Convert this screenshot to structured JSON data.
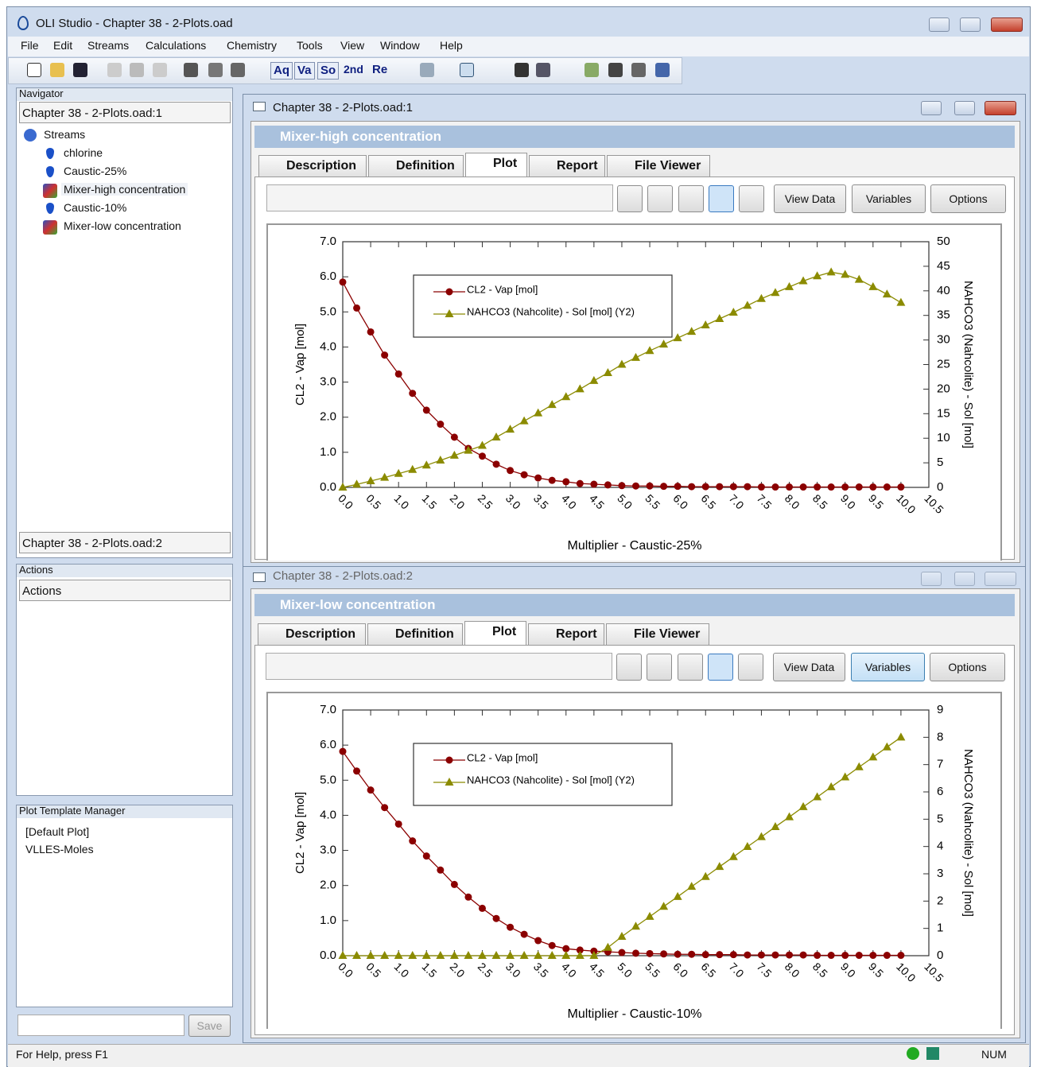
{
  "window": {
    "title": "OLI Studio - Chapter 38 - 2-Plots.oad",
    "menu": [
      "File",
      "Edit",
      "Streams",
      "Calculations",
      "Chemistry",
      "Tools",
      "View",
      "Window",
      "Help"
    ],
    "toolbar": [
      "Aq",
      "Va",
      "So",
      "2nd",
      "Re"
    ],
    "navigator": {
      "title": "Navigator",
      "file1": "Chapter 38 - 2-Plots.oad:1",
      "tree": [
        "Streams",
        "chlorine",
        "Caustic-25%",
        "Mixer-high concentration",
        "Caustic-10%",
        "Mixer-low concentration"
      ],
      "file2": "Chapter 38 - 2-Plots.oad:2"
    },
    "actions": {
      "title": "Actions",
      "header": "Actions"
    },
    "plot_templates": {
      "title": "Plot Template Manager",
      "items": [
        "[Default Plot]",
        "VLLES-Moles"
      ],
      "save": "Save"
    },
    "documents": [
      {
        "title": "Chapter 38 - 2-Plots.oad:1",
        "heading": "Mixer-high concentration"
      },
      {
        "title": "Chapter 38 - 2-Plots.oad:2",
        "heading": "Mixer-low concentration"
      }
    ],
    "tabs": [
      "Description",
      "Definition",
      "Plot",
      "Report",
      "File Viewer"
    ],
    "buttons": [
      "View Data",
      "Variables",
      "Options"
    ],
    "status": {
      "help": "For Help, press F1",
      "num": "NUM"
    }
  },
  "chart_data": [
    {
      "type": "line",
      "xlabel": "Multiplier - Caustic-25%",
      "ylabel": "CL2 - Vap [mol]",
      "y2label": "NAHCO3 (Nahcolite) - Sol [mol]",
      "x": [
        0,
        0.25,
        0.5,
        0.75,
        1,
        1.25,
        1.5,
        1.75,
        2,
        2.25,
        2.5,
        2.75,
        3,
        3.25,
        3.5,
        3.75,
        4,
        4.25,
        4.5,
        4.75,
        5,
        5.25,
        5.5,
        5.75,
        6,
        6.25,
        6.5,
        6.75,
        7,
        7.25,
        7.5,
        7.75,
        8,
        8.25,
        8.5,
        8.75,
        9,
        9.25,
        9.5,
        9.75,
        10
      ],
      "series": [
        {
          "name": "CL2 - Vap [mol]",
          "color": "#8b0000",
          "marker": "circle",
          "values": [
            5.85,
            5.11,
            4.43,
            3.77,
            3.23,
            2.68,
            2.2,
            1.8,
            1.43,
            1.11,
            0.89,
            0.66,
            0.48,
            0.36,
            0.27,
            0.2,
            0.16,
            0.11,
            0.09,
            0.07,
            0.05,
            0.04,
            0.04,
            0.03,
            0.03,
            0.02,
            0.02,
            0.02,
            0.02,
            0.02,
            0.01,
            0.01,
            0.01,
            0.01,
            0.01,
            0.01,
            0.01,
            0.01,
            0.01,
            0.01,
            0.01
          ]
        },
        {
          "name": "NAHCO3 (Nahcolite) - Sol [mol] (Y2)",
          "color": "#8b8b00",
          "marker": "triangle",
          "axis": "y2",
          "values": [
            0,
            0.6,
            1.3,
            2.0,
            2.8,
            3.6,
            4.5,
            5.5,
            6.5,
            7.5,
            8.5,
            10.2,
            11.8,
            13.5,
            15.1,
            16.8,
            18.4,
            20.0,
            21.7,
            23.3,
            25.0,
            26.4,
            27.8,
            29.1,
            30.4,
            31.7,
            33.0,
            34.3,
            35.6,
            37.0,
            38.4,
            39.6,
            40.8,
            42.0,
            43.0,
            43.8,
            43.3,
            42.3,
            40.8,
            39.3,
            37.6
          ]
        }
      ],
      "xlim": [
        0,
        10.5
      ],
      "ylim": [
        0,
        7
      ],
      "y2lim": [
        0,
        50
      ],
      "xticks": [
        {
          "value": 0,
          "label": "0.0"
        },
        {
          "value": 0.5,
          "label": "0.5"
        },
        {
          "value": 1,
          "label": "1.0"
        },
        {
          "value": 1.5,
          "label": "1.5"
        },
        {
          "value": 2,
          "label": "2.0"
        },
        {
          "value": 2.5,
          "label": "2.5"
        },
        {
          "value": 3,
          "label": "3.0"
        },
        {
          "value": 3.5,
          "label": "3.5"
        },
        {
          "value": 4,
          "label": "4.0"
        },
        {
          "value": 4.5,
          "label": "4.5"
        },
        {
          "value": 5,
          "label": "5.0"
        },
        {
          "value": 5.5,
          "label": "5.5"
        },
        {
          "value": 6,
          "label": "6.0"
        },
        {
          "value": 6.5,
          "label": "6.5"
        },
        {
          "value": 7,
          "label": "7.0"
        },
        {
          "value": 7.5,
          "label": "7.5"
        },
        {
          "value": 8,
          "label": "8.0"
        },
        {
          "value": 8.5,
          "label": "8.5"
        },
        {
          "value": 9,
          "label": "9.0"
        },
        {
          "value": 9.5,
          "label": "9.5"
        },
        {
          "value": 10,
          "label": "10.0"
        },
        {
          "value": 10.5,
          "label": "10.5"
        }
      ],
      "yticks": [
        {
          "value": 0,
          "label": "0.0"
        },
        {
          "value": 1,
          "label": "1.0"
        },
        {
          "value": 2,
          "label": "2.0"
        },
        {
          "value": 3,
          "label": "3.0"
        },
        {
          "value": 4,
          "label": "4.0"
        },
        {
          "value": 5,
          "label": "5.0"
        },
        {
          "value": 6,
          "label": "6.0"
        },
        {
          "value": 7,
          "label": "7.0"
        }
      ],
      "y2ticks": [
        0,
        5,
        10,
        15,
        20,
        25,
        30,
        35,
        40,
        45,
        50
      ]
    },
    {
      "type": "line",
      "xlabel": "Multiplier - Caustic-10%",
      "ylabel": "CL2 - Vap [mol]",
      "y2label": "NAHCO3 (Nahcolite) - Sol [mol]",
      "x": [
        0,
        0.25,
        0.5,
        0.75,
        1,
        1.25,
        1.5,
        1.75,
        2,
        2.25,
        2.5,
        2.75,
        3,
        3.25,
        3.5,
        3.75,
        4,
        4.25,
        4.5,
        4.75,
        5,
        5.25,
        5.5,
        5.75,
        6,
        6.25,
        6.5,
        6.75,
        7,
        7.25,
        7.5,
        7.75,
        8,
        8.25,
        8.5,
        8.75,
        9,
        9.25,
        9.5,
        9.75,
        10
      ],
      "series": [
        {
          "name": "CL2 - Vap [mol]",
          "color": "#8b0000",
          "marker": "circle",
          "values": [
            5.82,
            5.26,
            4.72,
            4.22,
            3.75,
            3.27,
            2.84,
            2.44,
            2.03,
            1.67,
            1.35,
            1.06,
            0.81,
            0.61,
            0.43,
            0.29,
            0.2,
            0.16,
            0.13,
            0.11,
            0.09,
            0.07,
            0.06,
            0.05,
            0.04,
            0.04,
            0.03,
            0.03,
            0.03,
            0.02,
            0.02,
            0.02,
            0.02,
            0.02,
            0.01,
            0.01,
            0.01,
            0.01,
            0.01,
            0.01,
            0.01
          ]
        },
        {
          "name": "NAHCO3 (Nahcolite) - Sol [mol] (Y2)",
          "color": "#8b8b00",
          "marker": "triangle",
          "axis": "y2",
          "values": [
            0,
            0,
            0,
            0,
            0,
            0,
            0,
            0,
            0,
            0,
            0,
            0,
            0,
            0,
            0,
            0,
            0,
            0,
            0,
            0.3,
            0.7,
            1.07,
            1.43,
            1.8,
            2.16,
            2.53,
            2.89,
            3.26,
            3.62,
            3.99,
            4.35,
            4.72,
            5.08,
            5.45,
            5.81,
            6.18,
            6.54,
            6.91,
            7.27,
            7.64,
            8.0
          ]
        }
      ],
      "xlim": [
        0,
        10.5
      ],
      "ylim": [
        0,
        7
      ],
      "y2lim": [
        0,
        9
      ],
      "xticks": [
        {
          "value": 0,
          "label": "0.0"
        },
        {
          "value": 0.5,
          "label": "0.5"
        },
        {
          "value": 1,
          "label": "1.0"
        },
        {
          "value": 1.5,
          "label": "1.5"
        },
        {
          "value": 2,
          "label": "2.0"
        },
        {
          "value": 2.5,
          "label": "2.5"
        },
        {
          "value": 3,
          "label": "3.0"
        },
        {
          "value": 3.5,
          "label": "3.5"
        },
        {
          "value": 4,
          "label": "4.0"
        },
        {
          "value": 4.5,
          "label": "4.5"
        },
        {
          "value": 5,
          "label": "5.0"
        },
        {
          "value": 5.5,
          "label": "5.5"
        },
        {
          "value": 6,
          "label": "6.0"
        },
        {
          "value": 6.5,
          "label": "6.5"
        },
        {
          "value": 7,
          "label": "7.0"
        },
        {
          "value": 7.5,
          "label": "7.5"
        },
        {
          "value": 8,
          "label": "8.0"
        },
        {
          "value": 8.5,
          "label": "8.5"
        },
        {
          "value": 9,
          "label": "9.0"
        },
        {
          "value": 9.5,
          "label": "9.5"
        },
        {
          "value": 10,
          "label": "10.0"
        },
        {
          "value": 10.5,
          "label": "10.5"
        }
      ],
      "yticks": [
        {
          "value": 0,
          "label": "0.0"
        },
        {
          "value": 1,
          "label": "1.0"
        },
        {
          "value": 2,
          "label": "2.0"
        },
        {
          "value": 3,
          "label": "3.0"
        },
        {
          "value": 4,
          "label": "4.0"
        },
        {
          "value": 5,
          "label": "5.0"
        },
        {
          "value": 6,
          "label": "6.0"
        },
        {
          "value": 7,
          "label": "7.0"
        }
      ],
      "y2ticks": [
        0,
        1,
        2,
        3,
        4,
        5,
        6,
        7,
        8,
        9
      ]
    }
  ]
}
